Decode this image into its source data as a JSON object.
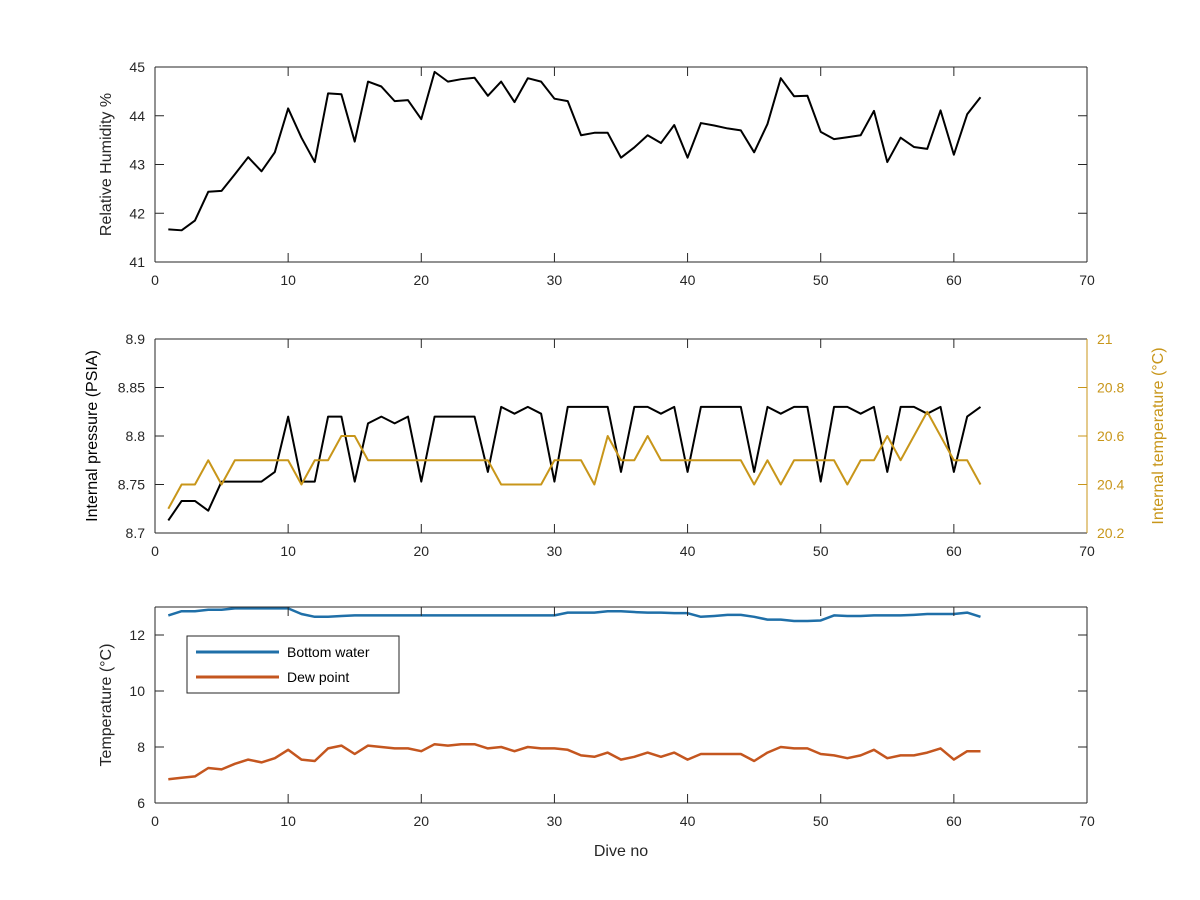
{
  "chart_data": [
    {
      "type": "line",
      "ylabel": "Relative Humidity %",
      "xlim": [
        0,
        70
      ],
      "ylim": [
        41,
        45
      ],
      "x_ticks": [
        "0",
        "10",
        "20",
        "30",
        "40",
        "50",
        "60",
        "70"
      ],
      "y_ticks": [
        "41",
        "42",
        "43",
        "44",
        "45"
      ],
      "series": [
        {
          "color": "#000000",
          "x": [
            1,
            2,
            3,
            4,
            5,
            6,
            7,
            8,
            9,
            10,
            11,
            12,
            13,
            14,
            15,
            16,
            17,
            18,
            19,
            20,
            21,
            22,
            23,
            24,
            25,
            26,
            27,
            28,
            29,
            30,
            31,
            32,
            33,
            34,
            35,
            36,
            37,
            38,
            39,
            40,
            41,
            42,
            43,
            44,
            45,
            46,
            47,
            48,
            49,
            50,
            51,
            52,
            53,
            54,
            55,
            56,
            57,
            58,
            59,
            60,
            61,
            62
          ],
          "values": [
            41.67,
            41.65,
            41.85,
            42.44,
            42.46,
            42.8,
            43.15,
            42.86,
            43.25,
            44.15,
            43.55,
            43.05,
            44.46,
            44.44,
            43.47,
            44.7,
            44.6,
            44.3,
            44.32,
            43.93,
            44.9,
            44.7,
            44.75,
            44.78,
            44.41,
            44.7,
            44.28,
            44.77,
            44.7,
            44.35,
            44.3,
            43.6,
            43.65,
            43.65,
            43.14,
            43.35,
            43.6,
            43.44,
            43.81,
            43.14,
            43.85,
            43.8,
            43.74,
            43.7,
            43.25,
            43.83,
            44.77,
            44.4,
            44.41,
            43.67,
            43.52,
            43.56,
            43.6,
            44.1,
            43.05,
            43.55,
            43.36,
            43.32,
            44.11,
            43.2,
            44.03,
            44.38
          ]
        }
      ]
    },
    {
      "type": "line",
      "ylabel": "Internal pressure (PSIA)",
      "y2label": "Internal temperature (°C)",
      "xlim": [
        0,
        70
      ],
      "ylim": [
        8.7,
        8.9
      ],
      "y2lim": [
        20.2,
        21
      ],
      "x_ticks": [
        "0",
        "10",
        "20",
        "30",
        "40",
        "50",
        "60",
        "70"
      ],
      "y_ticks": [
        "8.7",
        "8.75",
        "8.8",
        "8.85",
        "8.9"
      ],
      "y2_ticks": [
        "20.2",
        "20.4",
        "20.6",
        "20.8",
        "21"
      ],
      "series": [
        {
          "axis": "left",
          "color": "#000000",
          "x": [
            1,
            2,
            3,
            4,
            5,
            6,
            7,
            8,
            9,
            10,
            11,
            12,
            13,
            14,
            15,
            16,
            17,
            18,
            19,
            20,
            21,
            22,
            23,
            24,
            25,
            26,
            27,
            28,
            29,
            30,
            31,
            32,
            33,
            34,
            35,
            36,
            37,
            38,
            39,
            40,
            41,
            42,
            43,
            44,
            45,
            46,
            47,
            48,
            49,
            50,
            51,
            52,
            53,
            54,
            55,
            56,
            57,
            58,
            59,
            60,
            61,
            62
          ],
          "values": [
            8.713,
            8.733,
            8.733,
            8.723,
            8.753,
            8.753,
            8.753,
            8.753,
            8.763,
            8.82,
            8.753,
            8.753,
            8.82,
            8.82,
            8.753,
            8.813,
            8.82,
            8.813,
            8.82,
            8.753,
            8.82,
            8.82,
            8.82,
            8.82,
            8.763,
            8.83,
            8.823,
            8.83,
            8.823,
            8.753,
            8.83,
            8.83,
            8.83,
            8.83,
            8.763,
            8.83,
            8.83,
            8.823,
            8.83,
            8.763,
            8.83,
            8.83,
            8.83,
            8.83,
            8.763,
            8.83,
            8.823,
            8.83,
            8.83,
            8.753,
            8.83,
            8.83,
            8.823,
            8.83,
            8.763,
            8.83,
            8.83,
            8.823,
            8.83,
            8.763,
            8.82,
            8.83
          ]
        },
        {
          "axis": "right",
          "color": "#c8961a",
          "x": [
            1,
            2,
            3,
            4,
            5,
            6,
            7,
            8,
            9,
            10,
            11,
            12,
            13,
            14,
            15,
            16,
            17,
            18,
            19,
            20,
            21,
            22,
            23,
            24,
            25,
            26,
            27,
            28,
            29,
            30,
            31,
            32,
            33,
            34,
            35,
            36,
            37,
            38,
            39,
            40,
            41,
            42,
            43,
            44,
            45,
            46,
            47,
            48,
            49,
            50,
            51,
            52,
            53,
            54,
            55,
            56,
            57,
            58,
            59,
            60,
            61,
            62
          ],
          "values": [
            20.3,
            20.4,
            20.4,
            20.5,
            20.4,
            20.5,
            20.5,
            20.5,
            20.5,
            20.5,
            20.4,
            20.5,
            20.5,
            20.6,
            20.6,
            20.5,
            20.5,
            20.5,
            20.5,
            20.5,
            20.5,
            20.5,
            20.5,
            20.5,
            20.5,
            20.4,
            20.4,
            20.4,
            20.4,
            20.5,
            20.5,
            20.5,
            20.4,
            20.6,
            20.5,
            20.5,
            20.6,
            20.5,
            20.5,
            20.5,
            20.5,
            20.5,
            20.5,
            20.5,
            20.4,
            20.5,
            20.4,
            20.5,
            20.5,
            20.5,
            20.5,
            20.4,
            20.5,
            20.5,
            20.6,
            20.5,
            20.6,
            20.7,
            20.6,
            20.5,
            20.5,
            20.4
          ]
        }
      ]
    },
    {
      "type": "line",
      "xlabel": "Dive no",
      "ylabel": "Temperature (°C)",
      "xlim": [
        0,
        70
      ],
      "ylim": [
        6,
        13
      ],
      "x_ticks": [
        "0",
        "10",
        "20",
        "30",
        "40",
        "50",
        "60",
        "70"
      ],
      "y_ticks": [
        "6",
        "8",
        "10",
        "12"
      ],
      "legend": {
        "placement": "top-left"
      },
      "series": [
        {
          "name": "Bottom water",
          "color": "#1f6fa8",
          "x": [
            1,
            2,
            3,
            4,
            5,
            6,
            7,
            8,
            9,
            10,
            11,
            12,
            13,
            14,
            15,
            16,
            17,
            18,
            19,
            20,
            21,
            22,
            23,
            24,
            25,
            26,
            27,
            28,
            29,
            30,
            31,
            32,
            33,
            34,
            35,
            36,
            37,
            38,
            39,
            40,
            41,
            42,
            43,
            44,
            45,
            46,
            47,
            48,
            49,
            50,
            51,
            52,
            53,
            54,
            55,
            56,
            57,
            58,
            59,
            60,
            61,
            62
          ],
          "values": [
            12.7,
            12.85,
            12.85,
            12.9,
            12.9,
            12.95,
            12.95,
            12.95,
            12.95,
            12.95,
            12.75,
            12.65,
            12.65,
            12.68,
            12.7,
            12.7,
            12.7,
            12.7,
            12.7,
            12.7,
            12.7,
            12.7,
            12.7,
            12.7,
            12.7,
            12.7,
            12.7,
            12.7,
            12.7,
            12.7,
            12.8,
            12.8,
            12.8,
            12.85,
            12.85,
            12.82,
            12.8,
            12.8,
            12.78,
            12.78,
            12.65,
            12.68,
            12.72,
            12.72,
            12.65,
            12.55,
            12.55,
            12.5,
            12.5,
            12.52,
            12.7,
            12.68,
            12.68,
            12.7,
            12.7,
            12.7,
            12.72,
            12.75,
            12.75,
            12.75,
            12.8,
            12.65
          ]
        },
        {
          "name": "Dew point",
          "color": "#c4561f",
          "x": [
            1,
            2,
            3,
            4,
            5,
            6,
            7,
            8,
            9,
            10,
            11,
            12,
            13,
            14,
            15,
            16,
            17,
            18,
            19,
            20,
            21,
            22,
            23,
            24,
            25,
            26,
            27,
            28,
            29,
            30,
            31,
            32,
            33,
            34,
            35,
            36,
            37,
            38,
            39,
            40,
            41,
            42,
            43,
            44,
            45,
            46,
            47,
            48,
            49,
            50,
            51,
            52,
            53,
            54,
            55,
            56,
            57,
            58,
            59,
            60,
            61,
            62
          ],
          "values": [
            6.85,
            6.9,
            6.95,
            7.25,
            7.2,
            7.4,
            7.55,
            7.45,
            7.6,
            7.9,
            7.55,
            7.5,
            7.95,
            8.05,
            7.75,
            8.05,
            8.0,
            7.95,
            7.95,
            7.85,
            8.1,
            8.05,
            8.1,
            8.1,
            7.95,
            8.0,
            7.85,
            8.0,
            7.95,
            7.95,
            7.9,
            7.7,
            7.65,
            7.8,
            7.55,
            7.65,
            7.8,
            7.65,
            7.8,
            7.55,
            7.75,
            7.75,
            7.75,
            7.75,
            7.5,
            7.8,
            8.0,
            7.95,
            7.95,
            7.75,
            7.7,
            7.6,
            7.7,
            7.9,
            7.6,
            7.7,
            7.7,
            7.8,
            7.95,
            7.55,
            7.85,
            7.85
          ]
        }
      ]
    }
  ]
}
